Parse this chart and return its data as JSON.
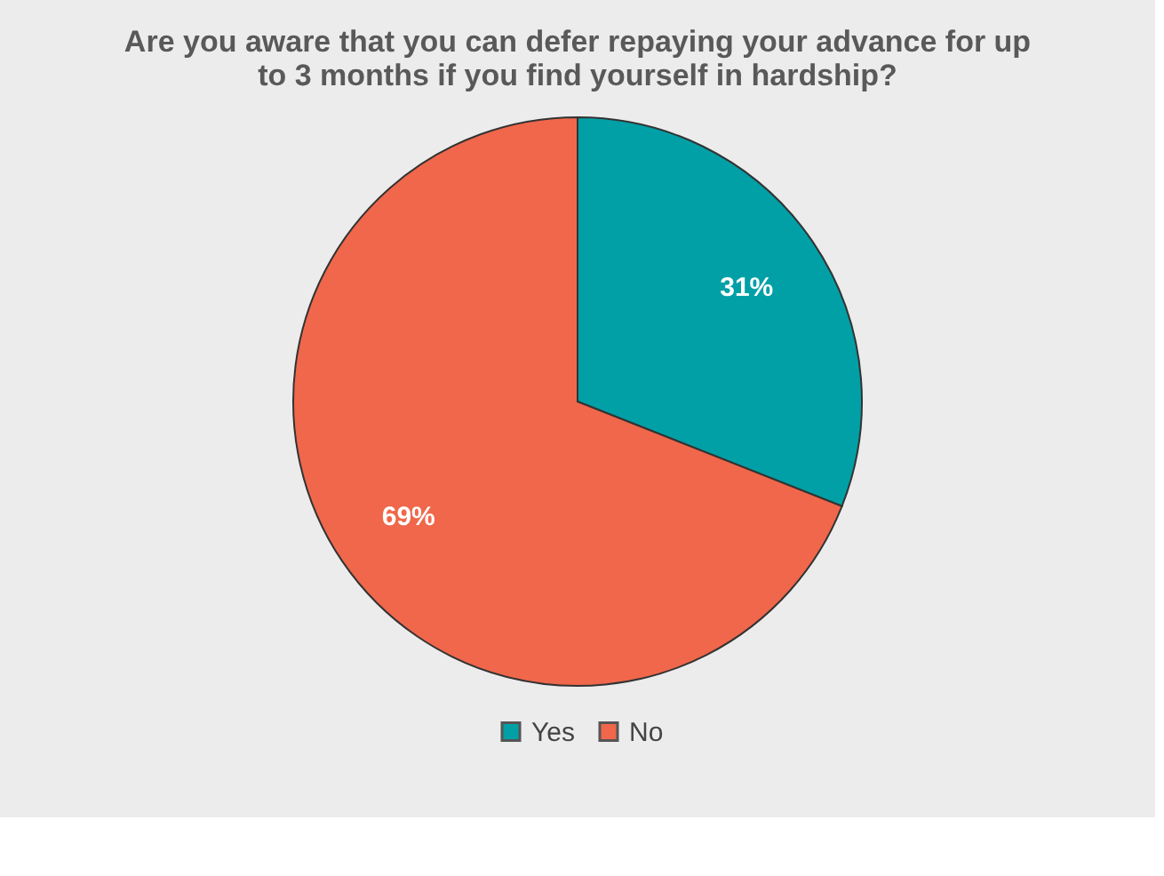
{
  "chart_data": {
    "type": "pie",
    "title": "Are you aware that you can defer repaying your advance for up to 3 months if you find yourself in hardship?",
    "categories": [
      "Yes",
      "No"
    ],
    "values": [
      31,
      69
    ],
    "colors": [
      "#00a0a6",
      "#f0674b"
    ],
    "value_labels": [
      "31%",
      "69%"
    ],
    "legend": "bottom"
  }
}
